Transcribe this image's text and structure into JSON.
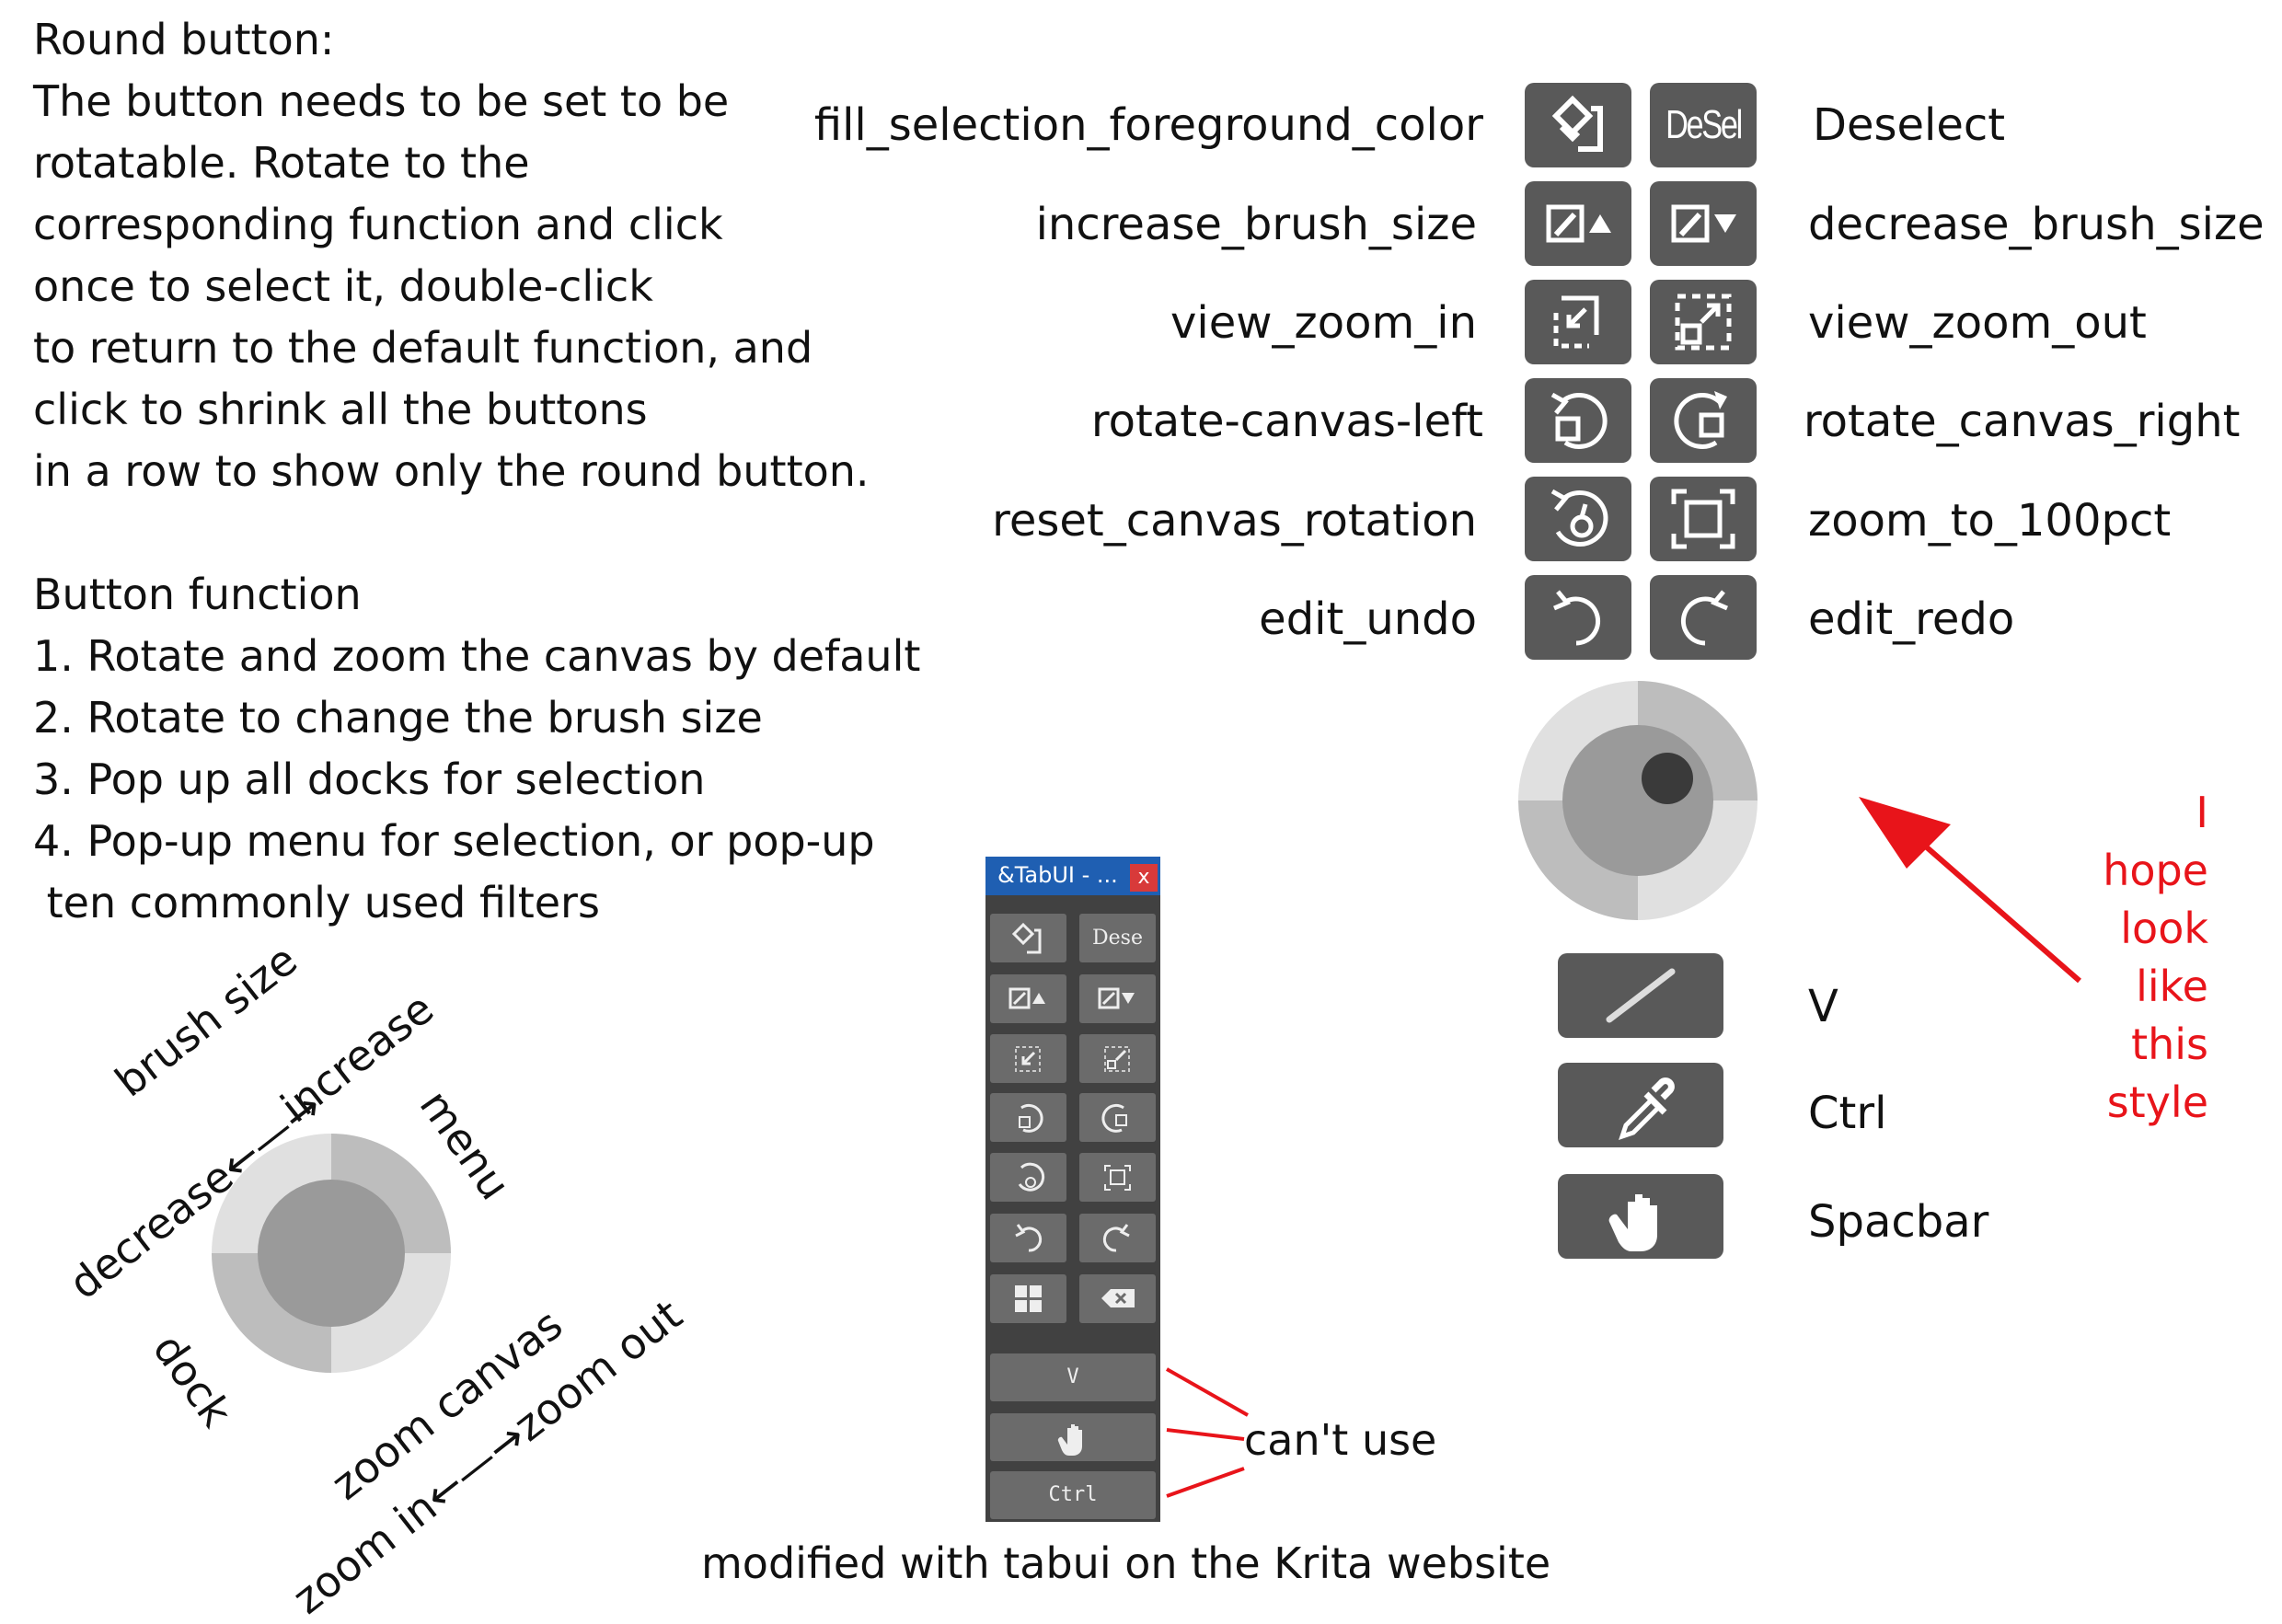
{
  "intro": {
    "lines": [
      "Round button:",
      "The button needs to be set to be",
      "rotatable. Rotate to the",
      "corresponding function and click",
      "once to select it, double-click",
      "to return to the default function, and",
      "click to shrink all the buttons",
      "in a row to show only the round button."
    ]
  },
  "functions": {
    "heading": "Button function",
    "items": [
      "1. Rotate and zoom the canvas by default",
      "2. Rotate to change the brush size",
      "3. Pop up all docks for selection",
      "4. Pop-up menu for selection, or pop-up",
      " ten commonly used filters"
    ]
  },
  "dial_labels": {
    "brush_size": "brush size",
    "decrease_increase": "decrease←—→increase",
    "menu": "menu",
    "dock": "dock",
    "zoom_canvas": "zoom canvas",
    "zoomin_zoomout": "zoom in←—→zoom out"
  },
  "buttons": [
    {
      "left_label": "fill_selection_foreground_color",
      "right_label": "Deselect",
      "right_text": "DeSel"
    },
    {
      "left_label": "increase_brush_size",
      "right_label": "decrease_brush_size"
    },
    {
      "left_label": "view_zoom_in",
      "right_label": "view_zoom_out"
    },
    {
      "left_label": "rotate-canvas-left",
      "right_label": "rotate_canvas_right"
    },
    {
      "left_label": "reset_canvas_rotation",
      "right_label": "zoom_to_100pct"
    },
    {
      "left_label": "edit_undo",
      "right_label": "edit_redo"
    }
  ],
  "tools": [
    {
      "label": "V",
      "icon": "line-tool-icon"
    },
    {
      "label": "Ctrl",
      "icon": "eyedropper-icon"
    },
    {
      "label": "Spacbar",
      "icon": "hand-icon"
    }
  ],
  "hope": [
    "I",
    "hope",
    "look",
    "like",
    "this",
    "style"
  ],
  "tabui": {
    "title": "&TabUI - ...",
    "close": "x",
    "dese": "Dese",
    "v": "V",
    "ctrl": "Ctrl"
  },
  "cant_use": "can't use",
  "caption": "modified with tabui on the Krita website",
  "colors": {
    "button": "#595959",
    "annotation": "#e8141a",
    "panel": "#414141",
    "panel_title": "#1f5fb2"
  }
}
